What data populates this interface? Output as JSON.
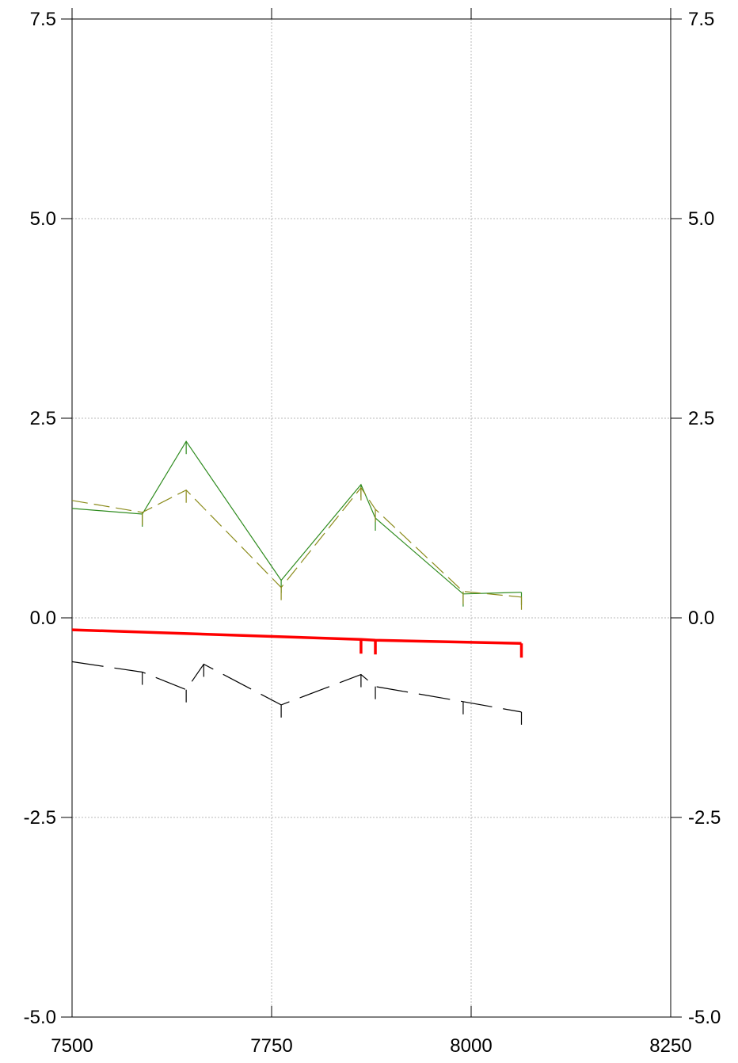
{
  "chart_data": {
    "type": "line",
    "title": "",
    "xlabel": "",
    "ylabel": "",
    "xlim": [
      7500,
      8250
    ],
    "ylim": [
      -5.0,
      7.5
    ],
    "x_ticks": [
      7500,
      7750,
      8000,
      8250
    ],
    "x_tick_labels": [
      "7500",
      "7750",
      "8000",
      "8250"
    ],
    "y_ticks": [
      7.5,
      5.0,
      2.5,
      0.0,
      -2.5,
      -5.0
    ],
    "y_tick_labels": [
      "7.5",
      "5.0",
      "2.5",
      "0.0",
      "-2.5",
      "-5.0"
    ],
    "grid": true,
    "legend": "none",
    "series": [
      {
        "color": "#2e8b1e",
        "style": "solid",
        "x": [
          7500,
          7588,
          7643,
          7762,
          7862,
          7880,
          7990,
          8063
        ],
        "y": [
          1.37,
          1.3,
          2.21,
          0.47,
          1.67,
          1.25,
          0.3,
          0.32
        ]
      },
      {
        "color": "#8b8b1a",
        "style": "dashed",
        "x": [
          7500,
          7588,
          7643,
          7762,
          7862,
          7880,
          7990,
          8063
        ],
        "y": [
          1.47,
          1.32,
          1.6,
          0.38,
          1.63,
          1.36,
          0.33,
          0.26
        ]
      },
      {
        "color": "#ff0000",
        "style": "solid-thick",
        "x": [
          7500,
          7862,
          7880,
          8063
        ],
        "y": [
          -0.15,
          -0.27,
          -0.28,
          -0.32
        ]
      },
      {
        "color": "#000000",
        "style": "long-dash",
        "x": [
          7500,
          7588,
          7643,
          7665,
          7762,
          7862,
          7880,
          7990,
          8063
        ],
        "y": [
          -0.55,
          -0.68,
          -0.9,
          -0.58,
          -1.09,
          -0.71,
          -0.86,
          -1.05,
          -1.18
        ]
      }
    ]
  }
}
